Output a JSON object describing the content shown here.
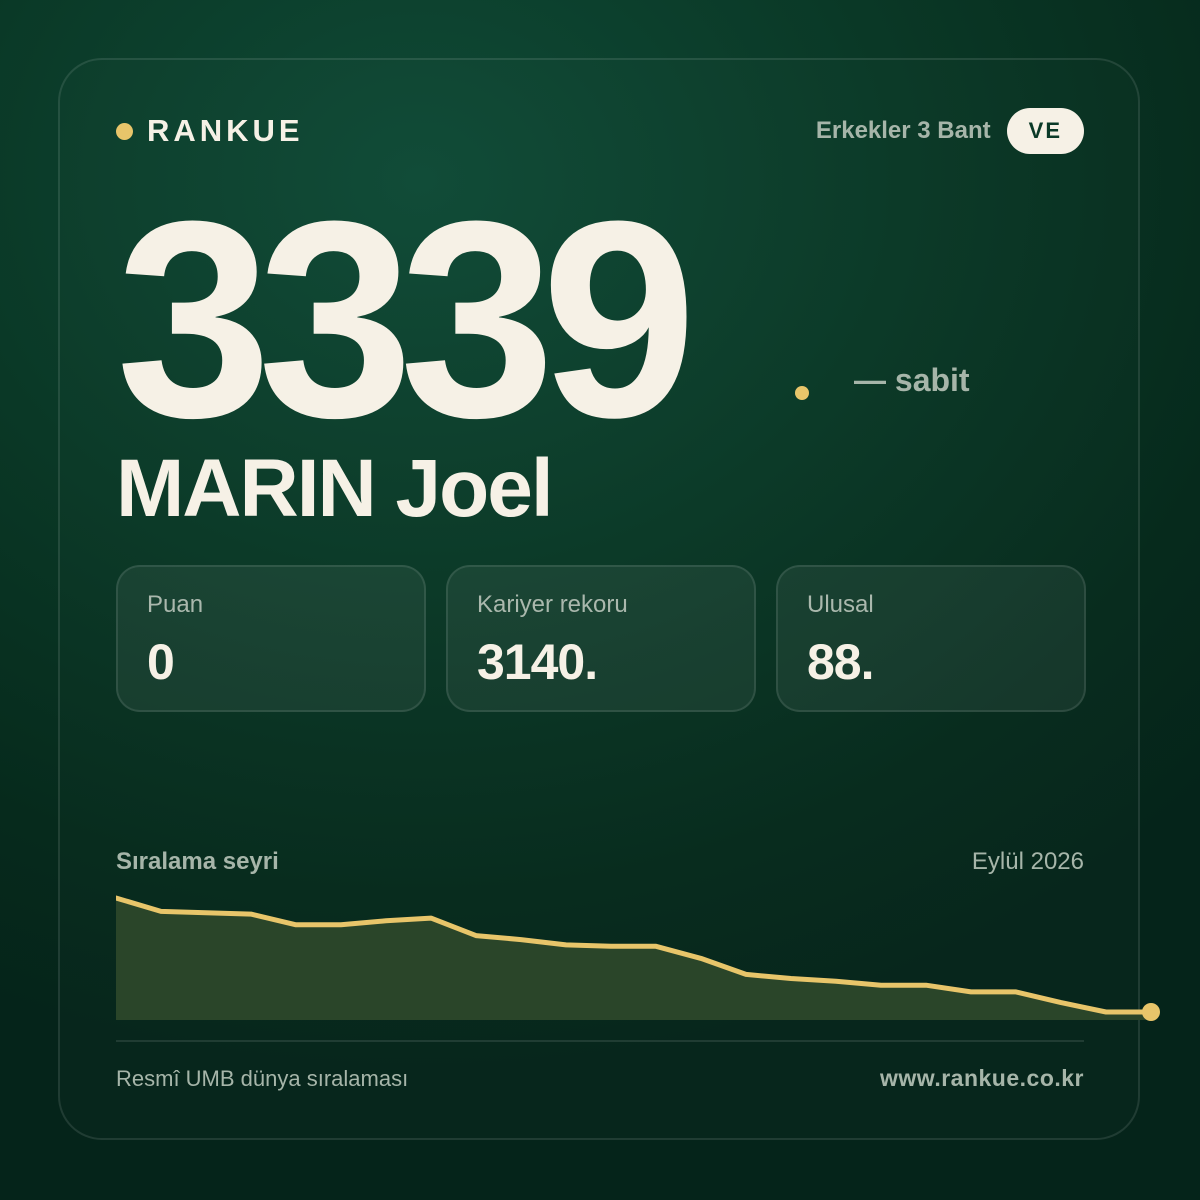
{
  "brand": {
    "name": "RANKUE",
    "accent_color": "#e8c56a"
  },
  "category": {
    "label": "Erkekler 3 Bant",
    "country_code": "VE"
  },
  "rank": {
    "value": "3339",
    "change": "— sabit"
  },
  "player": {
    "name": "MARIN Joel"
  },
  "stats": [
    {
      "label": "Puan",
      "value": "0"
    },
    {
      "label": "Kariyer rekoru",
      "value": "3140."
    },
    {
      "label": "Ulusal",
      "value": "88."
    }
  ],
  "trend": {
    "title": "Sıralama seyri",
    "date": "Eylül 2026",
    "line_color": "#e8c56a",
    "fill_color": "#2a4529",
    "points": [
      100,
      90,
      89,
      88,
      80,
      80,
      83,
      85,
      72,
      69,
      65,
      64,
      64,
      55,
      43,
      40,
      38,
      35,
      35,
      30,
      30,
      22,
      15,
      15
    ]
  },
  "footer": {
    "source": "Resmî UMB dünya sıralaması",
    "url": "www.rankue.co.kr"
  }
}
